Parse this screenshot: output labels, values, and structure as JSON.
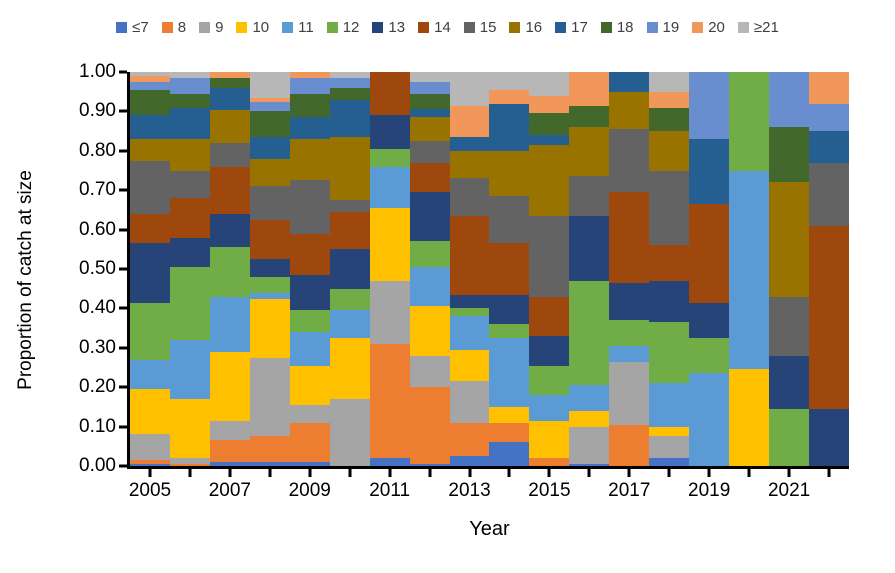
{
  "chart_data": {
    "type": "bar",
    "stacked": true,
    "title": "",
    "xlabel": "Year",
    "ylabel": "Proportion of catch at size",
    "ylim": [
      0,
      1.0
    ],
    "ytick_step": 0.1,
    "ytick_labels": [
      "0.00",
      "0.10",
      "0.20",
      "0.30",
      "0.40",
      "0.50",
      "0.60",
      "0.70",
      "0.80",
      "0.90",
      "1.00"
    ],
    "grid": false,
    "legend_position": "top",
    "categories": [
      2005,
      2006,
      2007,
      2008,
      2009,
      2010,
      2011,
      2012,
      2013,
      2014,
      2015,
      2016,
      2017,
      2018,
      2019,
      2020,
      2021,
      2022
    ],
    "xtick_labels_shown": [
      "2005",
      "2007",
      "2009",
      "2011",
      "2013",
      "2015",
      "2017",
      "2019",
      "2021"
    ],
    "series_order": "bottom-to-top",
    "series": [
      {
        "name": "≤7",
        "color": "#4472C4",
        "values": [
          0.005,
          0,
          0.01,
          0.01,
          0.01,
          0,
          0.02,
          0.005,
          0.025,
          0.06,
          0,
          0.005,
          0,
          0.02,
          0,
          0,
          0,
          0
        ]
      },
      {
        "name": "8",
        "color": "#ED7D31",
        "values": [
          0.01,
          0.005,
          0.055,
          0.065,
          0.1,
          0,
          0.29,
          0.195,
          0.085,
          0.05,
          0.02,
          0,
          0.105,
          0,
          0,
          0,
          0,
          0
        ]
      },
      {
        "name": "9",
        "color": "#A5A5A5",
        "values": [
          0.065,
          0.015,
          0.05,
          0.2,
          0.045,
          0.17,
          0.16,
          0.08,
          0.105,
          0,
          0,
          0.095,
          0.16,
          0.055,
          0,
          0,
          0,
          0
        ]
      },
      {
        "name": "10",
        "color": "#FFC000",
        "values": [
          0.115,
          0.15,
          0.175,
          0.15,
          0.1,
          0.155,
          0.185,
          0.125,
          0.08,
          0.04,
          0.095,
          0.04,
          0,
          0.025,
          0,
          0.245,
          0,
          0
        ]
      },
      {
        "name": "11",
        "color": "#5B9BD5",
        "values": [
          0.075,
          0.15,
          0.14,
          0.015,
          0.085,
          0.07,
          0.105,
          0.1,
          0.085,
          0.175,
          0.065,
          0.065,
          0.04,
          0.11,
          0.235,
          0.505,
          0,
          0
        ]
      },
      {
        "name": "12",
        "color": "#70AD47",
        "values": [
          0.145,
          0.185,
          0.125,
          0.04,
          0.055,
          0.055,
          0.045,
          0.065,
          0.02,
          0.035,
          0.075,
          0.265,
          0.065,
          0.155,
          0.09,
          0.25,
          0.145,
          0
        ]
      },
      {
        "name": "13",
        "color": "#264478",
        "values": [
          0.15,
          0.075,
          0.085,
          0.045,
          0.09,
          0.1,
          0.085,
          0.125,
          0.035,
          0.075,
          0.075,
          0.165,
          0.095,
          0.105,
          0.09,
          0,
          0.135,
          0.145
        ]
      },
      {
        "name": "14",
        "color": "#9E480E",
        "values": [
          0.075,
          0.1,
          0.12,
          0.1,
          0.105,
          0.095,
          0.11,
          0.075,
          0.2,
          0.13,
          0.1,
          0,
          0.23,
          0.09,
          0.25,
          0,
          0,
          0.465
        ]
      },
      {
        "name": "15",
        "color": "#636363",
        "values": [
          0.135,
          0.07,
          0.06,
          0.085,
          0.135,
          0.03,
          0,
          0.055,
          0.095,
          0.12,
          0.205,
          0.1,
          0.16,
          0.19,
          0,
          0,
          0.15,
          0.16
        ]
      },
      {
        "name": "16",
        "color": "#997300",
        "values": [
          0.055,
          0.08,
          0.085,
          0.07,
          0.105,
          0.16,
          0,
          0.06,
          0.07,
          0.115,
          0.18,
          0.125,
          0.095,
          0.1,
          0,
          0,
          0.29,
          0
        ]
      },
      {
        "name": "17",
        "color": "#255E91",
        "values": [
          0.06,
          0.08,
          0.055,
          0.055,
          0.055,
          0.095,
          0,
          0.02,
          0.035,
          0.12,
          0.025,
          0,
          0.05,
          0,
          0.165,
          0,
          0,
          0.08
        ]
      },
      {
        "name": "18",
        "color": "#43682B",
        "values": [
          0.065,
          0.035,
          0.025,
          0.065,
          0.06,
          0.03,
          0,
          0.04,
          0,
          0,
          0.055,
          0.055,
          0,
          0.06,
          0,
          0,
          0.14,
          0
        ]
      },
      {
        "name": "19",
        "color": "#698ED0",
        "values": [
          0.02,
          0.04,
          0,
          0.025,
          0.04,
          0.025,
          0,
          0.03,
          0,
          0,
          0,
          0,
          0,
          0,
          0.17,
          0,
          0.14,
          0.07
        ]
      },
      {
        "name": "20",
        "color": "#F1975A",
        "values": [
          0.015,
          0,
          0.015,
          0.01,
          0.015,
          0,
          0,
          0,
          0.08,
          0.035,
          0.045,
          0.085,
          0,
          0.04,
          0,
          0,
          0,
          0.08
        ]
      },
      {
        "name": "≥21",
        "color": "#B7B7B7",
        "values": [
          0.01,
          0.015,
          0,
          0.065,
          0,
          0.015,
          0,
          0.025,
          0.085,
          0.045,
          0.06,
          0,
          0,
          0.05,
          0,
          0,
          0,
          0
        ]
      }
    ]
  }
}
